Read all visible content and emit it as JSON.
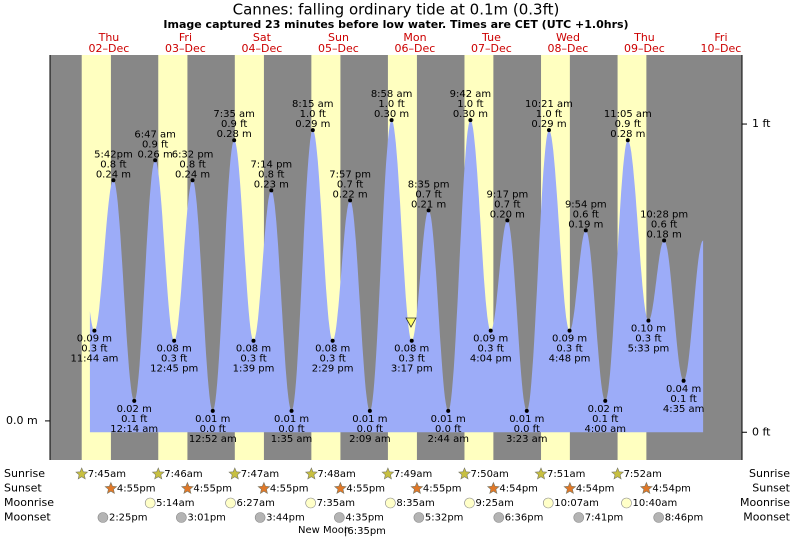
{
  "chart_data": {
    "type": "tide",
    "title": "Cannes: falling  ordinary tide at 0.1m (0.3ft)",
    "subtitle": "Image captured 23 minutes before low water. Times are CET (UTC +1.0hrs)",
    "days": [
      {
        "name": "Thu",
        "date": "02–Dec"
      },
      {
        "name": "Fri",
        "date": "03–Dec"
      },
      {
        "name": "Sat",
        "date": "04–Dec"
      },
      {
        "name": "Sun",
        "date": "05–Dec"
      },
      {
        "name": "Mon",
        "date": "06–Dec"
      },
      {
        "name": "Tue",
        "date": "07–Dec"
      },
      {
        "name": "Wed",
        "date": "08–Dec"
      },
      {
        "name": "Thu",
        "date": "09–Dec"
      },
      {
        "name": "Fri",
        "date": "10–Dec"
      }
    ],
    "events": [
      {
        "time": "11:44 am",
        "ft": {
          "value": 0.3,
          "label": "0.3 ft"
        },
        "m": {
          "value": 0.09,
          "label": "0.09 m"
        }
      },
      {
        "time": "5:42pm",
        "ft": {
          "value": 0.8,
          "label": "0.8 ft"
        },
        "m": {
          "value": 0.24,
          "label": "0.24 m"
        }
      },
      {
        "time": "12:14 am",
        "ft": {
          "value": 0.1,
          "label": "0.1 ft"
        },
        "m": {
          "value": 0.02,
          "label": "0.02 m"
        }
      },
      {
        "time": "6:47 am",
        "ft": {
          "value": 0.9,
          "label": "0.9 ft"
        },
        "m": {
          "value": 0.26,
          "label": "0.26 m"
        }
      },
      {
        "time": "12:45 pm",
        "ft": {
          "value": 0.3,
          "label": "0.3 ft"
        },
        "m": {
          "value": 0.08,
          "label": "0.08 m"
        }
      },
      {
        "time": "6:32 pm",
        "ft": {
          "value": 0.8,
          "label": "0.8 ft"
        },
        "m": {
          "value": 0.24,
          "label": "0.24 m"
        }
      },
      {
        "time": "12:52 am",
        "ft": {
          "value": 0.0,
          "label": "0.0 ft"
        },
        "m": {
          "value": 0.01,
          "label": "0.01 m"
        }
      },
      {
        "time": "7:35 am",
        "ft": {
          "value": 0.9,
          "label": "0.9 ft"
        },
        "m": {
          "value": 0.28,
          "label": "0.28 m"
        }
      },
      {
        "time": "1:39 pm",
        "ft": {
          "value": 0.3,
          "label": "0.3 ft"
        },
        "m": {
          "value": 0.08,
          "label": "0.08 m"
        }
      },
      {
        "time": "7:14 pm",
        "ft": {
          "value": 0.8,
          "label": "0.8 ft"
        },
        "m": {
          "value": 0.23,
          "label": "0.23 m"
        }
      },
      {
        "time": "1:35 am",
        "ft": {
          "value": 0.0,
          "label": "0.0 ft"
        },
        "m": {
          "value": 0.01,
          "label": "0.01 m"
        }
      },
      {
        "time": "8:15 am",
        "ft": {
          "value": 1.0,
          "label": "1.0 ft"
        },
        "m": {
          "value": 0.29,
          "label": "0.29 m"
        }
      },
      {
        "time": "2:29 pm",
        "ft": {
          "value": 0.3,
          "label": "0.3 ft"
        },
        "m": {
          "value": 0.08,
          "label": "0.08 m"
        }
      },
      {
        "time": "7:57 pm",
        "ft": {
          "value": 0.7,
          "label": "0.7 ft"
        },
        "m": {
          "value": 0.22,
          "label": "0.22 m"
        }
      },
      {
        "time": "2:09 am",
        "ft": {
          "value": 0.0,
          "label": "0.0 ft"
        },
        "m": {
          "value": 0.01,
          "label": "0.01 m"
        }
      },
      {
        "time": "8:58 am",
        "ft": {
          "value": 1.0,
          "label": "1.0 ft"
        },
        "m": {
          "value": 0.3,
          "label": "0.30 m"
        }
      },
      {
        "time": "3:17 pm",
        "ft": {
          "value": 0.3,
          "label": "0.3 ft"
        },
        "m": {
          "value": 0.08,
          "label": "0.08 m"
        }
      },
      {
        "time": "8:35 pm",
        "ft": {
          "value": 0.7,
          "label": "0.7 ft"
        },
        "m": {
          "value": 0.21,
          "label": "0.21 m"
        }
      },
      {
        "time": "2:44 am",
        "ft": {
          "value": 0.0,
          "label": "0.0 ft"
        },
        "m": {
          "value": 0.01,
          "label": "0.01 m"
        }
      },
      {
        "time": "9:42 am",
        "ft": {
          "value": 1.0,
          "label": "1.0 ft"
        },
        "m": {
          "value": 0.3,
          "label": "0.30 m"
        }
      },
      {
        "time": "4:04 pm",
        "ft": {
          "value": 0.3,
          "label": "0.3 ft"
        },
        "m": {
          "value": 0.09,
          "label": "0.09 m"
        }
      },
      {
        "time": "9:17 pm",
        "ft": {
          "value": 0.7,
          "label": "0.7 ft"
        },
        "m": {
          "value": 0.2,
          "label": "0.20 m"
        }
      },
      {
        "time": "3:23 am",
        "ft": {
          "value": 0.0,
          "label": "0.0 ft"
        },
        "m": {
          "value": 0.01,
          "label": "0.01 m"
        }
      },
      {
        "time": "10:21 am",
        "ft": {
          "value": 1.0,
          "label": "1.0 ft"
        },
        "m": {
          "value": 0.29,
          "label": "0.29 m"
        }
      },
      {
        "time": "4:48 pm",
        "ft": {
          "value": 0.3,
          "label": "0.3 ft"
        },
        "m": {
          "value": 0.09,
          "label": "0.09 m"
        }
      },
      {
        "time": "9:54 pm",
        "ft": {
          "value": 0.6,
          "label": "0.6 ft"
        },
        "m": {
          "value": 0.19,
          "label": "0.19 m"
        }
      },
      {
        "time": "4:00 am",
        "ft": {
          "value": 0.1,
          "label": "0.1 ft"
        },
        "m": {
          "value": 0.02,
          "label": "0.02 m"
        }
      },
      {
        "time": "11:05 am",
        "ft": {
          "value": 0.9,
          "label": "0.9 ft"
        },
        "m": {
          "value": 0.28,
          "label": "0.28 m"
        }
      },
      {
        "time": "5:33 pm",
        "ft": {
          "value": 0.3,
          "label": "0.3 ft"
        },
        "m": {
          "value": 0.1,
          "label": "0.10 m"
        }
      },
      {
        "time": "10:28 pm",
        "ft": {
          "value": 0.6,
          "label": "0.6 ft"
        },
        "m": {
          "value": 0.18,
          "label": "0.18 m"
        }
      },
      {
        "time": "4:35 am",
        "ft": {
          "value": 0.1,
          "label": "0.1 ft"
        },
        "m": {
          "value": 0.04,
          "label": "0.04 m"
        }
      }
    ],
    "ylim": [
      -0.039,
      0.365
    ],
    "yticks": [
      {
        "value": 0,
        "label": "0.0 m"
      }
    ],
    "y2lim": [
      -0.09,
      1.224
    ],
    "y2ticks": [
      {
        "value": 1,
        "label": "1 ft"
      },
      {
        "value": 0,
        "label": "0 ft"
      }
    ],
    "night_color": "#878787",
    "day_color": "#ffffc0",
    "tide_color": "#9cacf8",
    "rows": [
      {
        "label": "Sunrise",
        "marker": "star",
        "color": "#c8c040",
        "times": [
          "7:45am",
          "7:46am",
          "7:47am",
          "7:48am",
          "7:49am",
          "7:50am",
          "7:51am",
          "7:52am",
          null
        ]
      },
      {
        "label": "Sunset",
        "marker": "star",
        "color": "#e07828",
        "times": [
          "4:55pm",
          "4:55pm",
          "4:55pm",
          "4:55pm",
          "4:55pm",
          "4:54pm",
          "4:54pm",
          "4:54pm",
          null
        ]
      },
      {
        "label": "Moonrise",
        "marker": "circle",
        "color": "#ffffc8",
        "times": [
          null,
          "5:14am",
          "6:27am",
          "7:35am",
          "8:35am",
          "9:25am",
          "10:07am",
          "10:40am",
          null
        ]
      },
      {
        "label": "Moonset",
        "marker": "circle",
        "color": "#b4b4b4",
        "times": [
          "2:25pm",
          "3:01pm",
          "3:44pm",
          "4:35pm",
          "5:32pm",
          "6:36pm",
          "7:41pm",
          "8:46pm",
          null
        ]
      }
    ],
    "moon_phase": {
      "name": "New Moon",
      "time": "|6:35pm"
    }
  }
}
